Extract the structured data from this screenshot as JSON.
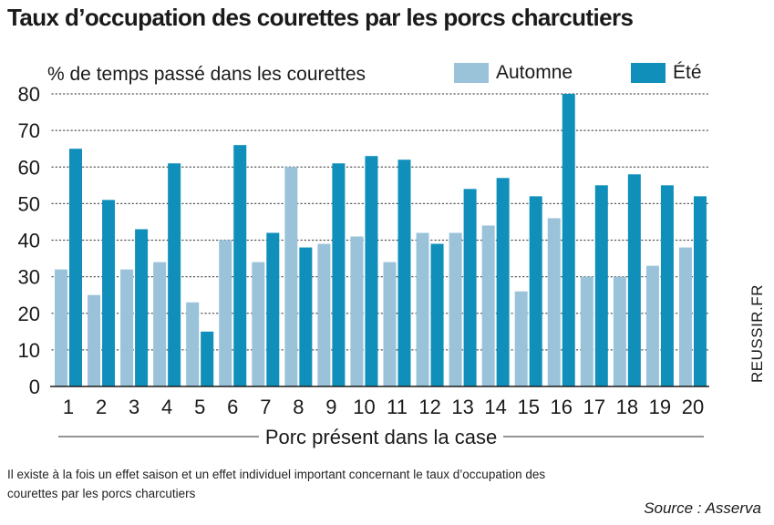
{
  "chart_data": {
    "type": "bar",
    "title": "Taux d’occupation des courettes par les porcs charcutiers",
    "ylabel": "% de temps passé dans les courettes",
    "xlabel": "Porc présent dans la case",
    "ylim": [
      0,
      80
    ],
    "yticks": [
      0,
      10,
      20,
      30,
      40,
      50,
      60,
      70,
      80
    ],
    "grid": "horizontal-dotted",
    "legend_placement": "top-right",
    "categories": [
      "1",
      "2",
      "3",
      "4",
      "5",
      "6",
      "7",
      "8",
      "9",
      "10",
      "11",
      "12",
      "13",
      "14",
      "15",
      "16",
      "17",
      "18",
      "19",
      "20"
    ],
    "series": [
      {
        "name": "Automne",
        "color": "#9ac3da",
        "values": [
          32,
          25,
          32,
          34,
          23,
          40,
          34,
          60,
          39,
          41,
          34,
          42,
          42,
          44,
          26,
          46,
          30,
          30,
          33,
          38
        ]
      },
      {
        "name": "Été",
        "color": "#0f8fba",
        "values": [
          65,
          51,
          43,
          61,
          15,
          66,
          42,
          38,
          61,
          63,
          62,
          39,
          54,
          57,
          52,
          80,
          55,
          58,
          55,
          52
        ]
      }
    ]
  },
  "watermark": "REUSSIR.FR",
  "note": "Il existe à la fois un effet saison et un effet individuel important concernant le taux d’occupation des courettes par les porcs charcutiers",
  "source": "Source : Asserva"
}
